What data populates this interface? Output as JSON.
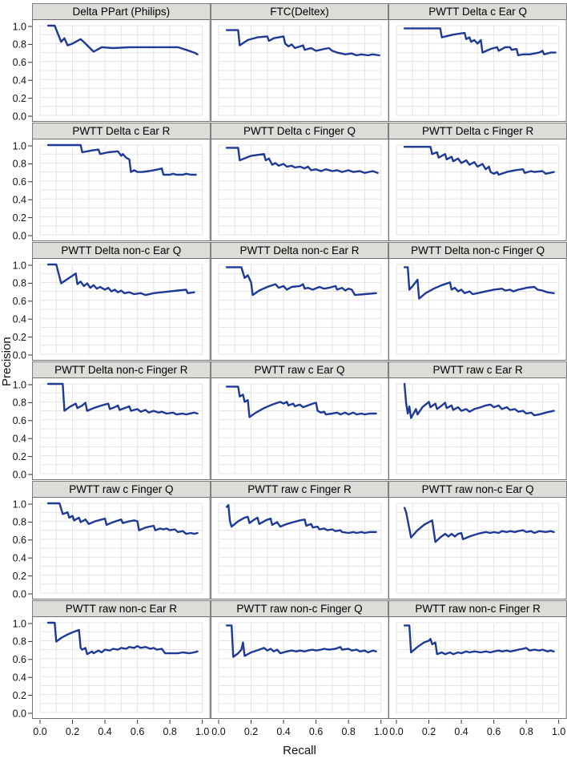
{
  "figure": {
    "xlabel": "Recall",
    "ylabel": "Precision",
    "x_ticks": [
      "0.0",
      "0.2",
      "0.4",
      "0.6",
      "0.8",
      "1.0"
    ],
    "y_ticks": [
      "1.0",
      "0.8",
      "0.6",
      "0.4",
      "0.2",
      "0.0"
    ],
    "xlim": [
      0,
      1
    ],
    "ylim": [
      0,
      1
    ],
    "grid": true,
    "layout": "6 rows x 3 columns trellis of precision-recall curves"
  },
  "colors": {
    "line": "#1e3a96",
    "grid": "#e3e3e3",
    "panel_border": "#6f6f6f",
    "strip_bg": "#dcdcd8",
    "tick": "#333333"
  },
  "chart_data": [
    {
      "type": "line",
      "title": "Delta PPart (Philips)",
      "x": [
        0.05,
        0.09,
        0.13,
        0.15,
        0.17,
        0.2,
        0.25,
        0.28,
        0.33,
        0.38,
        0.45,
        0.55,
        0.65,
        0.75,
        0.85,
        0.9,
        0.95,
        0.97
      ],
      "y": [
        1.0,
        1.0,
        0.82,
        0.86,
        0.78,
        0.8,
        0.85,
        0.8,
        0.71,
        0.76,
        0.75,
        0.76,
        0.76,
        0.76,
        0.76,
        0.73,
        0.7,
        0.68
      ]
    },
    {
      "type": "line",
      "title": "FTC(Deltex)",
      "x": [
        0.05,
        0.12,
        0.13,
        0.18,
        0.24,
        0.3,
        0.31,
        0.34,
        0.4,
        0.41,
        0.43,
        0.45,
        0.47,
        0.52,
        0.53,
        0.57,
        0.6,
        0.65,
        0.68,
        0.7,
        0.73,
        0.78,
        0.82,
        0.85,
        0.88,
        0.92,
        0.95,
        0.99
      ],
      "y": [
        0.95,
        0.95,
        0.78,
        0.84,
        0.87,
        0.88,
        0.83,
        0.86,
        0.88,
        0.8,
        0.77,
        0.79,
        0.75,
        0.78,
        0.73,
        0.75,
        0.72,
        0.74,
        0.75,
        0.72,
        0.7,
        0.68,
        0.69,
        0.67,
        0.68,
        0.67,
        0.68,
        0.67
      ]
    },
    {
      "type": "line",
      "title": "PWTT Delta c Ear Q",
      "x": [
        0.05,
        0.27,
        0.28,
        0.35,
        0.42,
        0.43,
        0.45,
        0.46,
        0.48,
        0.5,
        0.52,
        0.53,
        0.58,
        0.62,
        0.63,
        0.67,
        0.7,
        0.71,
        0.74,
        0.75,
        0.78,
        0.82,
        0.88,
        0.9,
        0.91,
        0.95,
        0.98
      ],
      "y": [
        0.97,
        0.97,
        0.87,
        0.9,
        0.92,
        0.85,
        0.87,
        0.82,
        0.84,
        0.8,
        0.84,
        0.7,
        0.74,
        0.76,
        0.72,
        0.76,
        0.76,
        0.73,
        0.74,
        0.67,
        0.68,
        0.68,
        0.7,
        0.72,
        0.68,
        0.7,
        0.7
      ]
    },
    {
      "type": "line",
      "title": "PWTT Delta c Ear R",
      "x": [
        0.05,
        0.25,
        0.26,
        0.32,
        0.36,
        0.37,
        0.42,
        0.48,
        0.5,
        0.51,
        0.53,
        0.55,
        0.56,
        0.58,
        0.6,
        0.63,
        0.67,
        0.7,
        0.73,
        0.75,
        0.76,
        0.8,
        0.82,
        0.84,
        0.88,
        0.9,
        0.93,
        0.96
      ],
      "y": [
        1.0,
        1.0,
        0.92,
        0.94,
        0.95,
        0.9,
        0.92,
        0.93,
        0.88,
        0.9,
        0.86,
        0.84,
        0.7,
        0.72,
        0.7,
        0.7,
        0.71,
        0.72,
        0.73,
        0.74,
        0.67,
        0.67,
        0.68,
        0.67,
        0.67,
        0.68,
        0.67,
        0.67
      ]
    },
    {
      "type": "line",
      "title": "PWTT Delta c Finger Q",
      "x": [
        0.05,
        0.12,
        0.13,
        0.2,
        0.28,
        0.29,
        0.31,
        0.33,
        0.35,
        0.37,
        0.4,
        0.42,
        0.45,
        0.47,
        0.5,
        0.53,
        0.55,
        0.57,
        0.6,
        0.63,
        0.66,
        0.7,
        0.73,
        0.76,
        0.8,
        0.83,
        0.87,
        0.9,
        0.95,
        0.98
      ],
      "y": [
        0.97,
        0.97,
        0.83,
        0.88,
        0.9,
        0.83,
        0.85,
        0.78,
        0.8,
        0.77,
        0.79,
        0.76,
        0.77,
        0.75,
        0.76,
        0.74,
        0.76,
        0.72,
        0.73,
        0.71,
        0.73,
        0.71,
        0.72,
        0.7,
        0.72,
        0.7,
        0.71,
        0.69,
        0.71,
        0.69
      ]
    },
    {
      "type": "line",
      "title": "PWTT Delta c Finger R",
      "x": [
        0.05,
        0.21,
        0.22,
        0.25,
        0.26,
        0.3,
        0.31,
        0.34,
        0.35,
        0.38,
        0.4,
        0.43,
        0.45,
        0.48,
        0.5,
        0.53,
        0.55,
        0.57,
        0.58,
        0.6,
        0.62,
        0.63,
        0.68,
        0.73,
        0.78,
        0.79,
        0.83,
        0.85,
        0.9,
        0.92,
        0.97
      ],
      "y": [
        0.98,
        0.98,
        0.9,
        0.92,
        0.86,
        0.9,
        0.84,
        0.87,
        0.82,
        0.85,
        0.8,
        0.83,
        0.78,
        0.81,
        0.76,
        0.79,
        0.73,
        0.76,
        0.7,
        0.68,
        0.7,
        0.67,
        0.7,
        0.72,
        0.73,
        0.69,
        0.71,
        0.7,
        0.71,
        0.68,
        0.7
      ]
    },
    {
      "type": "line",
      "title": "PWTT Delta non-c Ear Q",
      "x": [
        0.05,
        0.1,
        0.13,
        0.18,
        0.22,
        0.23,
        0.25,
        0.27,
        0.29,
        0.31,
        0.33,
        0.35,
        0.37,
        0.4,
        0.42,
        0.44,
        0.46,
        0.48,
        0.5,
        0.52,
        0.55,
        0.58,
        0.62,
        0.65,
        0.7,
        0.75,
        0.8,
        0.85,
        0.9,
        0.91,
        0.95
      ],
      "y": [
        1.0,
        1.0,
        0.79,
        0.85,
        0.9,
        0.78,
        0.81,
        0.76,
        0.79,
        0.74,
        0.77,
        0.73,
        0.75,
        0.72,
        0.74,
        0.7,
        0.72,
        0.69,
        0.71,
        0.68,
        0.69,
        0.67,
        0.68,
        0.66,
        0.68,
        0.69,
        0.7,
        0.71,
        0.72,
        0.68,
        0.69
      ]
    },
    {
      "type": "line",
      "title": "PWTT Delta non-c Ear R",
      "x": [
        0.05,
        0.14,
        0.16,
        0.18,
        0.2,
        0.21,
        0.25,
        0.3,
        0.35,
        0.37,
        0.4,
        0.42,
        0.45,
        0.5,
        0.52,
        0.53,
        0.55,
        0.58,
        0.62,
        0.65,
        0.68,
        0.72,
        0.73,
        0.76,
        0.78,
        0.8,
        0.82,
        0.84,
        0.9,
        0.97
      ],
      "y": [
        0.97,
        0.97,
        0.85,
        0.88,
        0.8,
        0.66,
        0.71,
        0.75,
        0.78,
        0.74,
        0.76,
        0.72,
        0.75,
        0.76,
        0.78,
        0.73,
        0.74,
        0.72,
        0.75,
        0.73,
        0.74,
        0.76,
        0.72,
        0.74,
        0.71,
        0.73,
        0.72,
        0.66,
        0.67,
        0.68
      ]
    },
    {
      "type": "line",
      "title": "PWTT Delta non-c Finger Q",
      "x": [
        0.05,
        0.07,
        0.08,
        0.1,
        0.13,
        0.14,
        0.18,
        0.23,
        0.28,
        0.33,
        0.34,
        0.36,
        0.38,
        0.4,
        0.42,
        0.45,
        0.47,
        0.5,
        0.55,
        0.6,
        0.65,
        0.67,
        0.7,
        0.72,
        0.75,
        0.78,
        0.8,
        0.85,
        0.87,
        0.9,
        0.93,
        0.97
      ],
      "y": [
        0.97,
        0.97,
        0.72,
        0.76,
        0.83,
        0.62,
        0.68,
        0.73,
        0.77,
        0.8,
        0.72,
        0.74,
        0.7,
        0.72,
        0.68,
        0.7,
        0.67,
        0.68,
        0.7,
        0.72,
        0.73,
        0.71,
        0.72,
        0.7,
        0.72,
        0.73,
        0.74,
        0.75,
        0.72,
        0.71,
        0.69,
        0.68
      ]
    },
    {
      "type": "line",
      "title": "PWTT Delta non-c Finger R",
      "x": [
        0.05,
        0.14,
        0.15,
        0.18,
        0.22,
        0.23,
        0.26,
        0.28,
        0.29,
        0.33,
        0.38,
        0.42,
        0.43,
        0.46,
        0.48,
        0.49,
        0.52,
        0.55,
        0.56,
        0.6,
        0.62,
        0.65,
        0.67,
        0.7,
        0.73,
        0.75,
        0.78,
        0.82,
        0.84,
        0.88,
        0.9,
        0.95,
        0.97
      ],
      "y": [
        1.0,
        1.0,
        0.7,
        0.74,
        0.78,
        0.73,
        0.76,
        0.79,
        0.7,
        0.73,
        0.76,
        0.78,
        0.72,
        0.74,
        0.76,
        0.71,
        0.73,
        0.75,
        0.7,
        0.72,
        0.69,
        0.71,
        0.68,
        0.7,
        0.68,
        0.69,
        0.67,
        0.68,
        0.66,
        0.67,
        0.66,
        0.68,
        0.67
      ]
    },
    {
      "type": "line",
      "title": "PWTT raw c Ear Q",
      "x": [
        0.05,
        0.12,
        0.13,
        0.15,
        0.16,
        0.18,
        0.19,
        0.23,
        0.28,
        0.33,
        0.38,
        0.4,
        0.42,
        0.43,
        0.46,
        0.47,
        0.5,
        0.52,
        0.55,
        0.58,
        0.6,
        0.61,
        0.63,
        0.65,
        0.66,
        0.7,
        0.73,
        0.75,
        0.78,
        0.8,
        0.83,
        0.85,
        0.88,
        0.9,
        0.93,
        0.97
      ],
      "y": [
        0.97,
        0.97,
        0.86,
        0.88,
        0.8,
        0.82,
        0.63,
        0.68,
        0.73,
        0.77,
        0.8,
        0.78,
        0.8,
        0.76,
        0.78,
        0.75,
        0.77,
        0.74,
        0.76,
        0.78,
        0.79,
        0.7,
        0.68,
        0.69,
        0.66,
        0.67,
        0.68,
        0.66,
        0.68,
        0.66,
        0.68,
        0.66,
        0.67,
        0.66,
        0.67,
        0.67
      ]
    },
    {
      "type": "line",
      "title": "PWTT raw c Ear R",
      "x": [
        0.05,
        0.06,
        0.07,
        0.08,
        0.09,
        0.12,
        0.13,
        0.16,
        0.18,
        0.2,
        0.21,
        0.24,
        0.25,
        0.28,
        0.3,
        0.31,
        0.34,
        0.35,
        0.38,
        0.4,
        0.43,
        0.45,
        0.48,
        0.52,
        0.55,
        0.58,
        0.6,
        0.63,
        0.65,
        0.68,
        0.7,
        0.73,
        0.75,
        0.78,
        0.8,
        0.83,
        0.85,
        0.88,
        0.92,
        0.97
      ],
      "y": [
        1.0,
        0.78,
        0.67,
        0.75,
        0.62,
        0.72,
        0.66,
        0.74,
        0.77,
        0.8,
        0.74,
        0.78,
        0.72,
        0.76,
        0.79,
        0.73,
        0.76,
        0.71,
        0.74,
        0.7,
        0.72,
        0.69,
        0.72,
        0.74,
        0.76,
        0.77,
        0.74,
        0.76,
        0.72,
        0.74,
        0.71,
        0.72,
        0.69,
        0.7,
        0.67,
        0.68,
        0.65,
        0.66,
        0.68,
        0.7
      ]
    },
    {
      "type": "line",
      "title": "PWTT raw c Finger Q",
      "x": [
        0.05,
        0.12,
        0.14,
        0.17,
        0.18,
        0.2,
        0.21,
        0.24,
        0.25,
        0.28,
        0.3,
        0.34,
        0.38,
        0.4,
        0.41,
        0.45,
        0.5,
        0.51,
        0.55,
        0.58,
        0.6,
        0.61,
        0.65,
        0.7,
        0.71,
        0.74,
        0.76,
        0.78,
        0.8,
        0.83,
        0.85,
        0.88,
        0.9,
        0.93,
        0.95,
        0.97
      ],
      "y": [
        1.0,
        1.0,
        0.88,
        0.9,
        0.84,
        0.86,
        0.81,
        0.84,
        0.79,
        0.82,
        0.77,
        0.8,
        0.82,
        0.83,
        0.76,
        0.79,
        0.82,
        0.78,
        0.8,
        0.81,
        0.8,
        0.7,
        0.73,
        0.75,
        0.7,
        0.72,
        0.71,
        0.72,
        0.7,
        0.71,
        0.68,
        0.69,
        0.66,
        0.67,
        0.66,
        0.67
      ]
    },
    {
      "type": "line",
      "title": "PWTT raw c Finger R",
      "x": [
        0.05,
        0.06,
        0.07,
        0.08,
        0.12,
        0.16,
        0.18,
        0.19,
        0.22,
        0.24,
        0.25,
        0.29,
        0.32,
        0.33,
        0.36,
        0.38,
        0.42,
        0.46,
        0.5,
        0.53,
        0.54,
        0.57,
        0.58,
        0.61,
        0.62,
        0.65,
        0.67,
        0.7,
        0.72,
        0.75,
        0.76,
        0.8,
        0.83,
        0.85,
        0.88,
        0.9,
        0.93,
        0.97
      ],
      "y": [
        0.96,
        0.98,
        0.8,
        0.74,
        0.8,
        0.84,
        0.85,
        0.78,
        0.82,
        0.84,
        0.77,
        0.81,
        0.83,
        0.76,
        0.79,
        0.74,
        0.77,
        0.79,
        0.81,
        0.82,
        0.75,
        0.77,
        0.73,
        0.74,
        0.71,
        0.72,
        0.7,
        0.71,
        0.69,
        0.7,
        0.68,
        0.67,
        0.68,
        0.67,
        0.68,
        0.67,
        0.68,
        0.68
      ]
    },
    {
      "type": "line",
      "title": "PWTT raw non-c Ear Q",
      "x": [
        0.05,
        0.06,
        0.09,
        0.13,
        0.17,
        0.2,
        0.22,
        0.24,
        0.27,
        0.3,
        0.32,
        0.34,
        0.36,
        0.38,
        0.4,
        0.41,
        0.45,
        0.5,
        0.55,
        0.58,
        0.6,
        0.63,
        0.65,
        0.68,
        0.7,
        0.73,
        0.75,
        0.78,
        0.8,
        0.83,
        0.85,
        0.88,
        0.92,
        0.95,
        0.97
      ],
      "y": [
        0.95,
        0.9,
        0.62,
        0.7,
        0.76,
        0.79,
        0.81,
        0.57,
        0.62,
        0.66,
        0.63,
        0.66,
        0.63,
        0.66,
        0.67,
        0.6,
        0.63,
        0.66,
        0.68,
        0.67,
        0.68,
        0.67,
        0.69,
        0.68,
        0.69,
        0.68,
        0.69,
        0.7,
        0.68,
        0.69,
        0.67,
        0.69,
        0.68,
        0.69,
        0.68
      ]
    },
    {
      "type": "line",
      "title": "PWTT raw non-c Ear R",
      "x": [
        0.05,
        0.09,
        0.1,
        0.13,
        0.17,
        0.21,
        0.24,
        0.25,
        0.26,
        0.28,
        0.29,
        0.32,
        0.33,
        0.36,
        0.38,
        0.4,
        0.43,
        0.45,
        0.48,
        0.5,
        0.53,
        0.55,
        0.58,
        0.6,
        0.62,
        0.65,
        0.68,
        0.7,
        0.72,
        0.75,
        0.77,
        0.8,
        0.85,
        0.88,
        0.92,
        0.95,
        0.97
      ],
      "y": [
        1.0,
        1.0,
        0.79,
        0.83,
        0.87,
        0.9,
        0.92,
        0.72,
        0.7,
        0.72,
        0.65,
        0.68,
        0.66,
        0.69,
        0.67,
        0.7,
        0.69,
        0.71,
        0.7,
        0.72,
        0.71,
        0.73,
        0.72,
        0.74,
        0.72,
        0.73,
        0.71,
        0.72,
        0.7,
        0.71,
        0.66,
        0.66,
        0.66,
        0.67,
        0.66,
        0.67,
        0.68
      ]
    },
    {
      "type": "line",
      "title": "PWTT raw non-c Finger Q",
      "x": [
        0.05,
        0.08,
        0.09,
        0.12,
        0.14,
        0.15,
        0.16,
        0.2,
        0.25,
        0.28,
        0.3,
        0.32,
        0.34,
        0.36,
        0.38,
        0.42,
        0.45,
        0.48,
        0.5,
        0.53,
        0.55,
        0.58,
        0.6,
        0.63,
        0.65,
        0.68,
        0.72,
        0.75,
        0.76,
        0.8,
        0.82,
        0.85,
        0.87,
        0.9,
        0.92,
        0.95,
        0.97
      ],
      "y": [
        0.97,
        0.97,
        0.62,
        0.66,
        0.7,
        0.78,
        0.63,
        0.67,
        0.7,
        0.72,
        0.69,
        0.71,
        0.68,
        0.7,
        0.66,
        0.68,
        0.69,
        0.68,
        0.69,
        0.68,
        0.69,
        0.7,
        0.69,
        0.7,
        0.71,
        0.7,
        0.71,
        0.73,
        0.7,
        0.71,
        0.69,
        0.7,
        0.68,
        0.69,
        0.67,
        0.69,
        0.68
      ]
    },
    {
      "type": "line",
      "title": "PWTT raw non-c Finger R",
      "x": [
        0.05,
        0.08,
        0.09,
        0.13,
        0.17,
        0.2,
        0.21,
        0.22,
        0.24,
        0.25,
        0.28,
        0.3,
        0.33,
        0.35,
        0.38,
        0.4,
        0.43,
        0.45,
        0.48,
        0.52,
        0.55,
        0.58,
        0.6,
        0.63,
        0.65,
        0.68,
        0.7,
        0.73,
        0.75,
        0.78,
        0.8,
        0.82,
        0.85,
        0.88,
        0.9,
        0.93,
        0.95,
        0.97
      ],
      "y": [
        0.97,
        0.97,
        0.67,
        0.73,
        0.78,
        0.8,
        0.82,
        0.76,
        0.78,
        0.65,
        0.67,
        0.65,
        0.67,
        0.65,
        0.67,
        0.66,
        0.68,
        0.67,
        0.68,
        0.67,
        0.68,
        0.67,
        0.68,
        0.69,
        0.68,
        0.69,
        0.68,
        0.69,
        0.7,
        0.71,
        0.72,
        0.69,
        0.7,
        0.69,
        0.7,
        0.68,
        0.69,
        0.68
      ]
    }
  ]
}
